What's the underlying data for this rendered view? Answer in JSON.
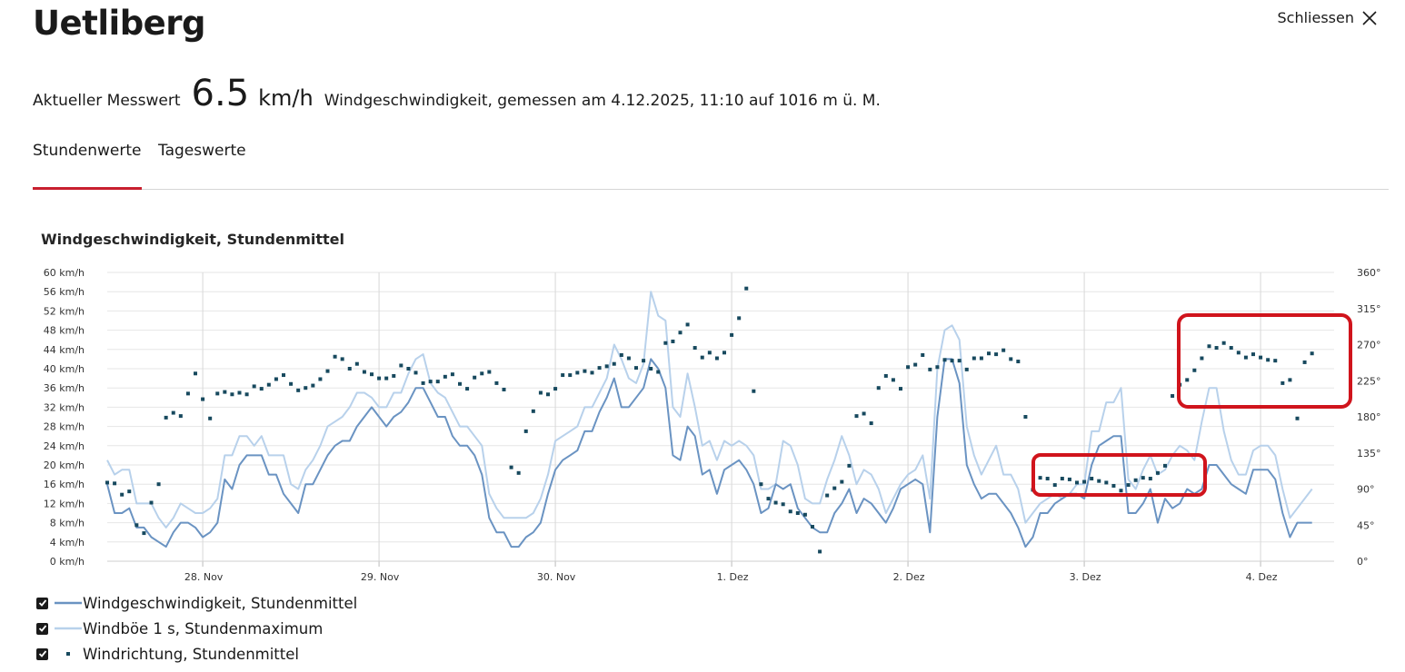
{
  "header": {
    "title": "Uetliberg",
    "close_label": "Schliessen"
  },
  "measurement": {
    "label": "Aktueller Messwert",
    "value": "6.5",
    "unit": "km/h",
    "description": "Windgeschwindigkeit, gemessen am 4.12.2025, 11:10 auf 1016 m ü. M."
  },
  "tabs": [
    {
      "label": "Stundenwerte",
      "active": true
    },
    {
      "label": "Tageswerte",
      "active": false
    }
  ],
  "colors": {
    "accent": "#c8202f",
    "mean": "#6a93c2",
    "gust": "#b8d1eb",
    "direction": "#17495e",
    "highlight": "#d0141c"
  },
  "chart_data": {
    "type": "line",
    "title": "Windgeschwindigkeit, Stundenmittel",
    "x_labels": [
      "28. Nov",
      "29. Nov",
      "30. Nov",
      "1. Dez",
      "2. Dez",
      "3. Dez",
      "4. Dez"
    ],
    "y_left_ticks": [
      "0 km/h",
      "4 km/h",
      "8 km/h",
      "12 km/h",
      "16 km/h",
      "20 km/h",
      "24 km/h",
      "28 km/h",
      "32 km/h",
      "36 km/h",
      "40 km/h",
      "44 km/h",
      "48 km/h",
      "52 km/h",
      "56 km/h",
      "60 km/h"
    ],
    "y_right_ticks": [
      "0°",
      "45°",
      "90°",
      "135°",
      "180°",
      "225°",
      "270°",
      "315°",
      "360°"
    ],
    "ylim_left": [
      0,
      60
    ],
    "ylim_right": [
      0,
      360
    ],
    "x_unit": "hours from 27 Nov 11:00",
    "grid": true,
    "legend_position": "bottom-left",
    "series": [
      {
        "name": "Windgeschwindigkeit, Stundenmittel",
        "axis": "left",
        "style": "line",
        "values": [
          16,
          10,
          10,
          11,
          7,
          7,
          5,
          4,
          3,
          6,
          8,
          8,
          7,
          5,
          6,
          8,
          17,
          15,
          20,
          22,
          22,
          22,
          18,
          18,
          14,
          12,
          10,
          16,
          16,
          19,
          22,
          24,
          25,
          25,
          28,
          30,
          32,
          30,
          28,
          30,
          31,
          33,
          36,
          36,
          33,
          30,
          30,
          26,
          24,
          24,
          22,
          18,
          9,
          6,
          6,
          3,
          3,
          5,
          6,
          8,
          14,
          19,
          21,
          22,
          23,
          27,
          27,
          31,
          34,
          38,
          32,
          32,
          34,
          36,
          42,
          40,
          36,
          22,
          21,
          28,
          26,
          18,
          19,
          14,
          19,
          20,
          21,
          19,
          16,
          10,
          11,
          16,
          15,
          16,
          11,
          9,
          7,
          6,
          6,
          10,
          12,
          15,
          10,
          13,
          12,
          10,
          8,
          11,
          15,
          16,
          17,
          16,
          6,
          30,
          42,
          42,
          37,
          20,
          16,
          13,
          14,
          14,
          12,
          10,
          7,
          3,
          5,
          10,
          10,
          12,
          13,
          14,
          14,
          13,
          20,
          24,
          25,
          26,
          26,
          10,
          10,
          12,
          15,
          8,
          13,
          11,
          12,
          15,
          14,
          15,
          20,
          20,
          18,
          16,
          15,
          14,
          19,
          19,
          19,
          17,
          10,
          5,
          8,
          8,
          8
        ]
      },
      {
        "name": "Windböe 1 s, Stundenmaximum",
        "axis": "left",
        "style": "line",
        "values": [
          21,
          18,
          19,
          19,
          12,
          12,
          12,
          9,
          7,
          9,
          12,
          11,
          10,
          10,
          11,
          13,
          22,
          22,
          26,
          26,
          24,
          26,
          22,
          22,
          22,
          16,
          15,
          19,
          21,
          24,
          28,
          29,
          30,
          32,
          35,
          35,
          34,
          32,
          32,
          35,
          35,
          39,
          42,
          43,
          37,
          35,
          34,
          31,
          28,
          28,
          26,
          24,
          14,
          11,
          9,
          9,
          9,
          9,
          10,
          13,
          18,
          25,
          26,
          27,
          28,
          32,
          32,
          35,
          38,
          45,
          42,
          38,
          37,
          41,
          56,
          51,
          50,
          32,
          30,
          39,
          32,
          24,
          25,
          21,
          25,
          24,
          25,
          24,
          22,
          15,
          15,
          16,
          25,
          24,
          20,
          13,
          12,
          12,
          17,
          21,
          26,
          22,
          16,
          19,
          18,
          15,
          10,
          13,
          16,
          18,
          19,
          22,
          13,
          40,
          48,
          49,
          46,
          28,
          22,
          18,
          21,
          24,
          18,
          18,
          15,
          8,
          10,
          12,
          13,
          14,
          13,
          14,
          16,
          16,
          27,
          27,
          33,
          33,
          36,
          17,
          15,
          19,
          22,
          18,
          19,
          22,
          24,
          23,
          21,
          29,
          36,
          36,
          27,
          21,
          18,
          18,
          23,
          24,
          24,
          22,
          15,
          9,
          11,
          13,
          15
        ]
      },
      {
        "name": "Windrichtung, Stundenmittel",
        "axis": "right",
        "style": "markers",
        "values": [
          98,
          97,
          83,
          87,
          45,
          35,
          73,
          96,
          179,
          185,
          181,
          209,
          234,
          202,
          178,
          209,
          211,
          208,
          210,
          208,
          218,
          215,
          220,
          227,
          232,
          221,
          213,
          216,
          219,
          227,
          237,
          255,
          252,
          240,
          246,
          236,
          233,
          228,
          228,
          231,
          244,
          240,
          235,
          222,
          224,
          224,
          230,
          233,
          221,
          215,
          229,
          234,
          236,
          222,
          214,
          117,
          110,
          162,
          187,
          210,
          208,
          215,
          232,
          232,
          235,
          237,
          235,
          241,
          243,
          246,
          257,
          253,
          241,
          250,
          240,
          236,
          272,
          274,
          285,
          295,
          266,
          254,
          260,
          253,
          260,
          282,
          303,
          340,
          212,
          96,
          78,
          73,
          71,
          62,
          60,
          58,
          43,
          12,
          82,
          91,
          99,
          119,
          181,
          184,
          172,
          216,
          231,
          226,
          215,
          242,
          245,
          257,
          239,
          242,
          251,
          250,
          250,
          239,
          253,
          253,
          259,
          258,
          263,
          252,
          249,
          180,
          89,
          104,
          103,
          95,
          103,
          102,
          98,
          99,
          103,
          100,
          98,
          94,
          88,
          95,
          101,
          104,
          103,
          110,
          119,
          206,
          220,
          226,
          238,
          253,
          268,
          266,
          272,
          266,
          260,
          254,
          258,
          254,
          251,
          250,
          222,
          226,
          178,
          248,
          259
        ]
      }
    ]
  }
}
